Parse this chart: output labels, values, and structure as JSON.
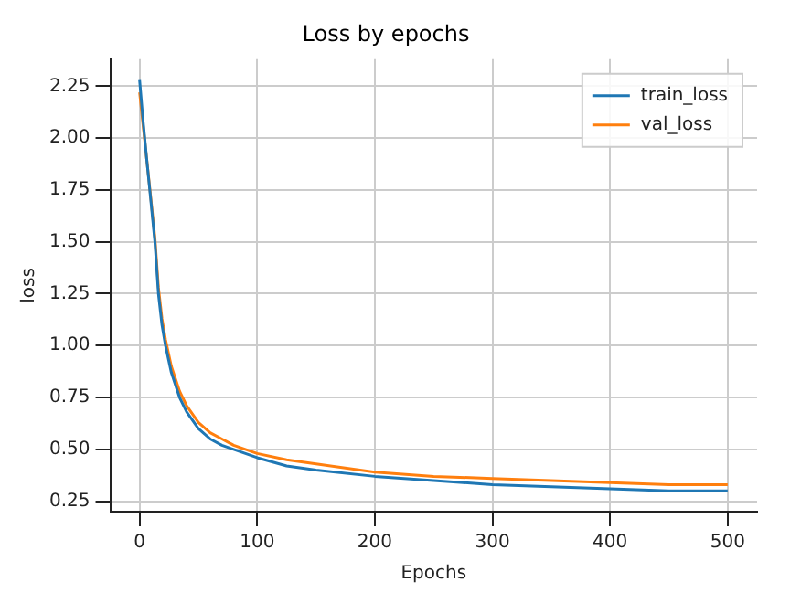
{
  "chart_data": {
    "type": "line",
    "title": "Loss by epochs",
    "xlabel": "Epochs",
    "ylabel": "loss",
    "xlim": [
      -25,
      525
    ],
    "xticks": [
      0,
      100,
      200,
      300,
      400,
      500
    ],
    "ylim": [
      0.2,
      2.38
    ],
    "yticks": [
      0.25,
      {
        "value": 0.5,
        "label": "0.50"
      },
      0.75,
      {
        "value": 1,
        "label": "1.00"
      },
      1.25,
      {
        "value": 1.5,
        "label": "1.50"
      },
      1.75,
      {
        "value": 2,
        "label": "2.00"
      },
      2.25
    ],
    "grid": true,
    "legend": "top right",
    "marker": "none",
    "line_style": "solid",
    "series": [
      {
        "name": "train_loss",
        "color": "#1f77b4",
        "x": [
          0,
          3,
          6,
          9,
          13,
          16,
          19,
          22,
          27,
          34,
          40,
          50,
          60,
          70,
          80,
          100,
          125,
          150,
          200,
          250,
          300,
          350,
          400,
          450,
          500
        ],
        "values": [
          2.28,
          2.08,
          1.9,
          1.73,
          1.5,
          1.25,
          1.1,
          1.0,
          0.87,
          0.75,
          0.68,
          0.6,
          0.55,
          0.52,
          0.5,
          0.46,
          0.42,
          0.4,
          0.37,
          0.35,
          0.33,
          0.32,
          0.31,
          0.3,
          0.3
        ]
      },
      {
        "name": "val_loss",
        "color": "#ff7f0e",
        "x": [
          0,
          3,
          6,
          9,
          13,
          16,
          19,
          22,
          27,
          34,
          40,
          50,
          60,
          70,
          80,
          100,
          125,
          150,
          200,
          250,
          300,
          350,
          400,
          450,
          500
        ],
        "values": [
          2.22,
          2.06,
          1.9,
          1.74,
          1.52,
          1.28,
          1.13,
          1.03,
          0.9,
          0.78,
          0.71,
          0.63,
          0.58,
          0.55,
          0.52,
          0.48,
          0.45,
          0.43,
          0.39,
          0.37,
          0.36,
          0.35,
          0.34,
          0.33,
          0.33
        ]
      }
    ]
  }
}
